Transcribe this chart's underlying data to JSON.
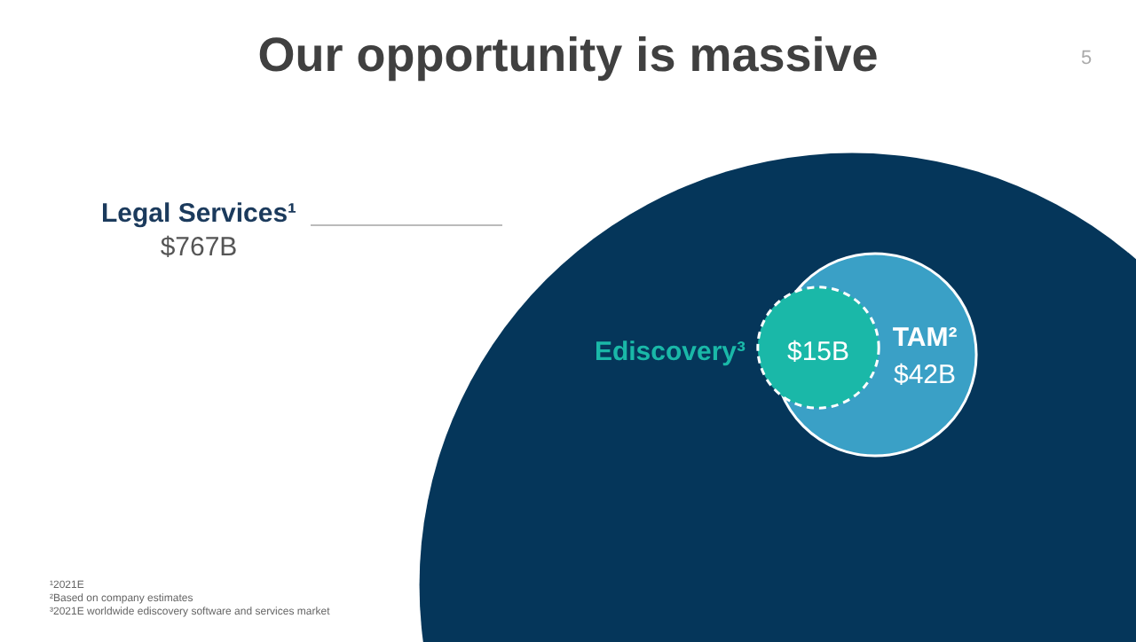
{
  "chart_data": {
    "type": "other",
    "title": "Our opportunity is massive",
    "categories": [
      "Legal Services¹",
      "TAM²",
      "Ediscovery³"
    ],
    "values": [
      767,
      42,
      15
    ],
    "value_labels": [
      "$767B",
      "$42B",
      "$15B"
    ],
    "colors": [
      "#05365a",
      "#3aa0c6",
      "#1ab8a8"
    ],
    "annotations": [
      "5",
      "¹2021E",
      "²Based on company estimates",
      "³2021E worldwide ediscovery software and services market"
    ]
  }
}
